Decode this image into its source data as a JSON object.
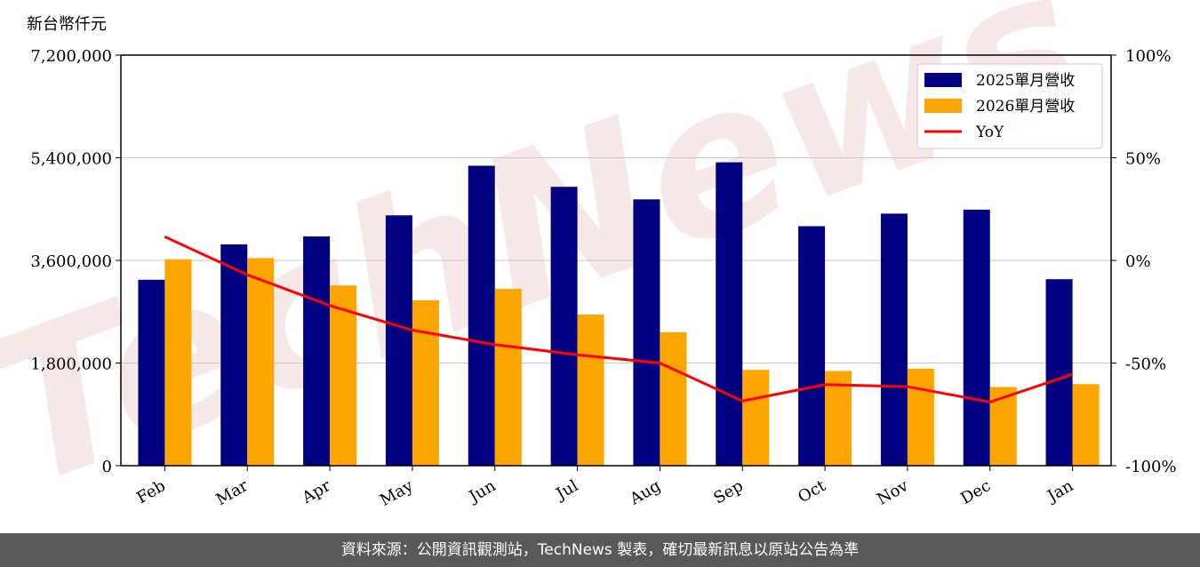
{
  "chart_data": {
    "type": "bar",
    "unit_label": "新台幣仟元",
    "categories": [
      "Feb",
      "Mar",
      "Apr",
      "May",
      "Jun",
      "Jul",
      "Aug",
      "Sep",
      "Oct",
      "Nov",
      "Dec",
      "Jan"
    ],
    "series": [
      {
        "name": "2025單月營收",
        "type": "bar",
        "color": "#000080",
        "values": [
          3260000,
          3880000,
          4020000,
          4390000,
          5260000,
          4890000,
          4670000,
          5320000,
          4200000,
          4420000,
          4490000,
          3270000
        ]
      },
      {
        "name": "2026單月營收",
        "type": "bar",
        "color": "#FFA500",
        "values": [
          3620000,
          3640000,
          3160000,
          2900000,
          3100000,
          2650000,
          2340000,
          1680000,
          1660000,
          1700000,
          1380000,
          1430000
        ]
      }
    ],
    "yoy": {
      "name": "YoY",
      "type": "line",
      "color": "#FF0000",
      "axis": "right",
      "values": [
        11.5,
        -7,
        -22,
        -34,
        -41,
        -46,
        -50,
        -68.5,
        -60.5,
        -61.5,
        -69,
        -55.5
      ]
    },
    "ylim": [
      0,
      7200000
    ],
    "yticks": [
      "0",
      "1,800,000",
      "3,600,000",
      "5,400,000",
      "7,200,000"
    ],
    "ytick_values": [
      0,
      1800000,
      3600000,
      5400000,
      7200000
    ],
    "y2lim": [
      -100,
      100
    ],
    "y2ticks": [
      "-100%",
      "-50%",
      "0%",
      "50%",
      "100%"
    ],
    "y2tick_values": [
      -100,
      -50,
      0,
      50,
      100
    ],
    "grid": true,
    "legend_position": "top-right",
    "watermark": "TechNews"
  },
  "footer": {
    "text": "資料來源：公開資訊觀測站，TechNews 製表，確切最新訊息以原站公告為準"
  }
}
